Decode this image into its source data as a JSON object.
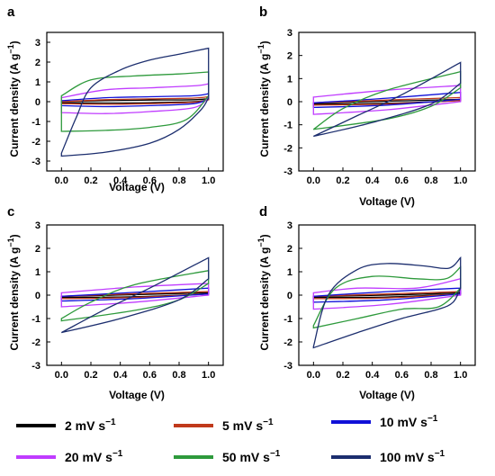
{
  "figure": {
    "y_label_main": "Current density (A g",
    "y_label_sup": "−1",
    "y_label_end": ")",
    "x_label": "Voltage (V)"
  },
  "legend": [
    {
      "text": "2 mV s",
      "sup": "−1",
      "color": "#000000"
    },
    {
      "text": "5 mV s",
      "sup": "−1",
      "color": "#c0391b"
    },
    {
      "text": "10 mV s",
      "sup": "−1",
      "color": "#1010d8"
    },
    {
      "text": "20 mV s",
      "sup": "−1",
      "color": "#c03cff"
    },
    {
      "text": "50 mV s",
      "sup": "−1",
      "color": "#2e9a3c"
    },
    {
      "text": "100 mV s",
      "sup": "−1",
      "color": "#1c2e6e"
    }
  ],
  "chart_data": [
    {
      "panel": "a",
      "type": "line",
      "xlabel": "Voltage (V)",
      "ylabel": "Current density (A g−1)",
      "xlim": [
        -0.1,
        1.1
      ],
      "ylim": [
        -3.5,
        3.5
      ],
      "xticks": [
        "0.0",
        "0.2",
        "0.4",
        "0.6",
        "0.8",
        "1.0"
      ],
      "yticks": [
        "-3",
        "-2",
        "-1",
        "0",
        "1",
        "2",
        "3"
      ],
      "series": [
        {
          "name": "2 mV s−1",
          "upper": [
            [
              0,
              0.0
            ],
            [
              0.3,
              0.05
            ],
            [
              0.6,
              0.08
            ],
            [
              0.9,
              0.1
            ],
            [
              1.0,
              0.15
            ]
          ],
          "lower": [
            [
              0,
              -0.05
            ],
            [
              0.3,
              -0.07
            ],
            [
              0.6,
              -0.05
            ],
            [
              0.9,
              0.0
            ],
            [
              1.0,
              0.1
            ]
          ]
        },
        {
          "name": "5 mV s−1",
          "upper": [
            [
              0,
              0.0
            ],
            [
              0.3,
              0.1
            ],
            [
              0.6,
              0.14
            ],
            [
              0.9,
              0.18
            ],
            [
              1.0,
              0.25
            ]
          ],
          "lower": [
            [
              0,
              -0.1
            ],
            [
              0.3,
              -0.13
            ],
            [
              0.6,
              -0.1
            ],
            [
              0.9,
              -0.03
            ],
            [
              1.0,
              0.1
            ]
          ]
        },
        {
          "name": "10 mV s−1",
          "upper": [
            [
              0,
              0.05
            ],
            [
              0.3,
              0.2
            ],
            [
              0.6,
              0.25
            ],
            [
              0.9,
              0.3
            ],
            [
              1.0,
              0.4
            ]
          ],
          "lower": [
            [
              0,
              -0.2
            ],
            [
              0.3,
              -0.25
            ],
            [
              0.6,
              -0.2
            ],
            [
              0.9,
              -0.1
            ],
            [
              1.0,
              0.15
            ]
          ]
        },
        {
          "name": "20 mV s−1",
          "upper": [
            [
              0,
              0.2
            ],
            [
              0.3,
              0.6
            ],
            [
              0.6,
              0.7
            ],
            [
              0.9,
              0.8
            ],
            [
              1.0,
              0.9
            ]
          ],
          "lower": [
            [
              0,
              -0.55
            ],
            [
              0.3,
              -0.6
            ],
            [
              0.6,
              -0.5
            ],
            [
              0.9,
              -0.3
            ],
            [
              1.0,
              0.2
            ]
          ]
        },
        {
          "name": "50 mV s−1",
          "upper": [
            [
              0,
              0.3
            ],
            [
              0.2,
              1.1
            ],
            [
              0.5,
              1.3
            ],
            [
              0.8,
              1.4
            ],
            [
              1.0,
              1.5
            ]
          ],
          "lower": [
            [
              0,
              -1.5
            ],
            [
              0.3,
              -1.45
            ],
            [
              0.6,
              -1.3
            ],
            [
              0.85,
              -0.9
            ],
            [
              1.0,
              0.3
            ]
          ]
        },
        {
          "name": "100 mV s−1",
          "upper": [
            [
              0,
              -2.6
            ],
            [
              0.1,
              -0.8
            ],
            [
              0.2,
              0.7
            ],
            [
              0.4,
              1.6
            ],
            [
              0.6,
              2.1
            ],
            [
              0.8,
              2.4
            ],
            [
              1.0,
              2.7
            ]
          ],
          "lower": [
            [
              0,
              -2.75
            ],
            [
              0.3,
              -2.55
            ],
            [
              0.6,
              -2.1
            ],
            [
              0.8,
              -1.4
            ],
            [
              0.95,
              -0.4
            ],
            [
              1.0,
              0.2
            ]
          ]
        }
      ]
    },
    {
      "panel": "b",
      "type": "line",
      "xlabel": "Voltage (V)",
      "ylabel": "Current density (A g−1)",
      "xlim": [
        -0.1,
        1.1
      ],
      "ylim": [
        -3.0,
        3.0
      ],
      "xticks": [
        "0.0",
        "0.2",
        "0.4",
        "0.6",
        "0.8",
        "1.0"
      ],
      "yticks": [
        "-3",
        "-2",
        "-1",
        "0",
        "1",
        "2",
        "3"
      ],
      "series": [
        {
          "name": "2 mV s−1",
          "upper": [
            [
              0,
              -0.05
            ],
            [
              0.5,
              0.02
            ],
            [
              1.0,
              0.1
            ]
          ],
          "lower": [
            [
              0,
              -0.1
            ],
            [
              0.5,
              -0.07
            ],
            [
              1.0,
              0.05
            ]
          ]
        },
        {
          "name": "5 mV s−1",
          "upper": [
            [
              0,
              -0.05
            ],
            [
              0.5,
              0.07
            ],
            [
              1.0,
              0.18
            ]
          ],
          "lower": [
            [
              0,
              -0.15
            ],
            [
              0.5,
              -0.1
            ],
            [
              1.0,
              0.05
            ]
          ]
        },
        {
          "name": "10 mV s−1",
          "upper": [
            [
              0,
              -0.05
            ],
            [
              0.5,
              0.15
            ],
            [
              1.0,
              0.4
            ]
          ],
          "lower": [
            [
              0,
              -0.25
            ],
            [
              0.5,
              -0.15
            ],
            [
              1.0,
              0.1
            ]
          ]
        },
        {
          "name": "20 mV s−1",
          "upper": [
            [
              0,
              0.2
            ],
            [
              0.5,
              0.5
            ],
            [
              1.0,
              0.7
            ]
          ],
          "lower": [
            [
              0,
              -0.55
            ],
            [
              0.5,
              -0.35
            ],
            [
              1.0,
              0.0
            ]
          ]
        },
        {
          "name": "50 mV s−1",
          "upper": [
            [
              0,
              -1.2
            ],
            [
              0.2,
              -0.3
            ],
            [
              0.5,
              0.5
            ],
            [
              1.0,
              1.3
            ]
          ],
          "lower": [
            [
              0,
              -1.2
            ],
            [
              0.5,
              -0.75
            ],
            [
              0.8,
              -0.2
            ],
            [
              1.0,
              0.6
            ]
          ]
        },
        {
          "name": "100 mV s−1",
          "upper": [
            [
              0,
              -1.5
            ],
            [
              0.3,
              -0.6
            ],
            [
              0.6,
              0.3
            ],
            [
              1.0,
              1.7
            ]
          ],
          "lower": [
            [
              0,
              -1.5
            ],
            [
              0.4,
              -0.9
            ],
            [
              0.8,
              -0.1
            ],
            [
              1.0,
              0.8
            ]
          ]
        }
      ]
    },
    {
      "panel": "c",
      "type": "line",
      "xlabel": "Voltage (V)",
      "ylabel": "Current density (A g−1)",
      "xlim": [
        -0.1,
        1.1
      ],
      "ylim": [
        -3.0,
        3.0
      ],
      "xticks": [
        "0.0",
        "0.2",
        "0.4",
        "0.6",
        "0.8",
        "1.0"
      ],
      "yticks": [
        "-3",
        "-2",
        "-1",
        "0",
        "1",
        "2",
        "3"
      ],
      "series": [
        {
          "name": "2 mV s−1",
          "upper": [
            [
              0,
              -0.05
            ],
            [
              0.5,
              0.02
            ],
            [
              1.0,
              0.1
            ]
          ],
          "lower": [
            [
              0,
              -0.1
            ],
            [
              0.5,
              -0.07
            ],
            [
              1.0,
              0.05
            ]
          ]
        },
        {
          "name": "5 mV s−1",
          "upper": [
            [
              0,
              -0.05
            ],
            [
              0.5,
              0.06
            ],
            [
              1.0,
              0.15
            ]
          ],
          "lower": [
            [
              0,
              -0.15
            ],
            [
              0.5,
              -0.1
            ],
            [
              1.0,
              0.05
            ]
          ]
        },
        {
          "name": "10 mV s−1",
          "upper": [
            [
              0,
              -0.05
            ],
            [
              0.5,
              0.12
            ],
            [
              1.0,
              0.3
            ]
          ],
          "lower": [
            [
              0,
              -0.25
            ],
            [
              0.5,
              -0.15
            ],
            [
              1.0,
              0.05
            ]
          ]
        },
        {
          "name": "20 mV s−1",
          "upper": [
            [
              0,
              0.1
            ],
            [
              0.5,
              0.35
            ],
            [
              1.0,
              0.5
            ]
          ],
          "lower": [
            [
              0,
              -0.5
            ],
            [
              0.5,
              -0.3
            ],
            [
              1.0,
              0.0
            ]
          ]
        },
        {
          "name": "50 mV s−1",
          "upper": [
            [
              0,
              -1.0
            ],
            [
              0.2,
              -0.3
            ],
            [
              0.5,
              0.45
            ],
            [
              1.0,
              1.05
            ]
          ],
          "lower": [
            [
              0,
              -1.1
            ],
            [
              0.5,
              -0.65
            ],
            [
              0.8,
              -0.2
            ],
            [
              1.0,
              0.5
            ]
          ]
        },
        {
          "name": "100 mV s−1",
          "upper": [
            [
              0,
              -1.6
            ],
            [
              0.3,
              -0.6
            ],
            [
              0.6,
              0.3
            ],
            [
              1.0,
              1.6
            ]
          ],
          "lower": [
            [
              0,
              -1.6
            ],
            [
              0.4,
              -1.0
            ],
            [
              0.8,
              -0.2
            ],
            [
              1.0,
              0.7
            ]
          ]
        }
      ]
    },
    {
      "panel": "d",
      "type": "line",
      "xlabel": "Voltage (V)",
      "ylabel": "Current density (A g−1)",
      "xlim": [
        -0.1,
        1.1
      ],
      "ylim": [
        -3.0,
        3.0
      ],
      "xticks": [
        "0.0",
        "0.2",
        "0.4",
        "0.6",
        "0.8",
        "1.0"
      ],
      "yticks": [
        "-3",
        "-2",
        "-1",
        "0",
        "1",
        "2",
        "3"
      ],
      "series": [
        {
          "name": "2 mV s−1",
          "upper": [
            [
              0,
              -0.05
            ],
            [
              0.5,
              0.0
            ],
            [
              1.0,
              0.1
            ]
          ],
          "lower": [
            [
              0,
              -0.1
            ],
            [
              0.5,
              -0.08
            ],
            [
              1.0,
              0.05
            ]
          ]
        },
        {
          "name": "5 mV s−1",
          "upper": [
            [
              0,
              -0.05
            ],
            [
              0.5,
              0.05
            ],
            [
              1.0,
              0.15
            ]
          ],
          "lower": [
            [
              0,
              -0.15
            ],
            [
              0.5,
              -0.12
            ],
            [
              1.0,
              0.05
            ]
          ]
        },
        {
          "name": "10 mV s−1",
          "upper": [
            [
              0,
              -0.05
            ],
            [
              0.5,
              0.15
            ],
            [
              1.0,
              0.3
            ]
          ],
          "lower": [
            [
              0,
              -0.3
            ],
            [
              0.5,
              -0.2
            ],
            [
              1.0,
              0.05
            ]
          ]
        },
        {
          "name": "20 mV s−1",
          "upper": [
            [
              0,
              0.1
            ],
            [
              0.3,
              0.3
            ],
            [
              0.7,
              0.3
            ],
            [
              1.0,
              0.7
            ]
          ],
          "lower": [
            [
              0,
              -0.6
            ],
            [
              0.5,
              -0.4
            ],
            [
              1.0,
              0.0
            ]
          ]
        },
        {
          "name": "50 mV s−1",
          "upper": [
            [
              0,
              -1.3
            ],
            [
              0.15,
              0.3
            ],
            [
              0.4,
              0.8
            ],
            [
              0.7,
              0.7
            ],
            [
              0.9,
              0.7
            ],
            [
              1.0,
              1.2
            ]
          ],
          "lower": [
            [
              0,
              -1.4
            ],
            [
              0.3,
              -1.0
            ],
            [
              0.6,
              -0.6
            ],
            [
              0.85,
              -0.5
            ],
            [
              1.0,
              0.3
            ]
          ]
        },
        {
          "name": "100 mV s−1",
          "upper": [
            [
              0,
              -2.2
            ],
            [
              0.1,
              0.0
            ],
            [
              0.3,
              1.1
            ],
            [
              0.5,
              1.35
            ],
            [
              0.75,
              1.25
            ],
            [
              0.92,
              1.15
            ],
            [
              1.0,
              1.6
            ]
          ],
          "lower": [
            [
              0,
              -2.25
            ],
            [
              0.3,
              -1.6
            ],
            [
              0.6,
              -1.0
            ],
            [
              0.85,
              -0.6
            ],
            [
              0.95,
              -0.3
            ],
            [
              1.0,
              0.3
            ]
          ]
        }
      ]
    }
  ]
}
